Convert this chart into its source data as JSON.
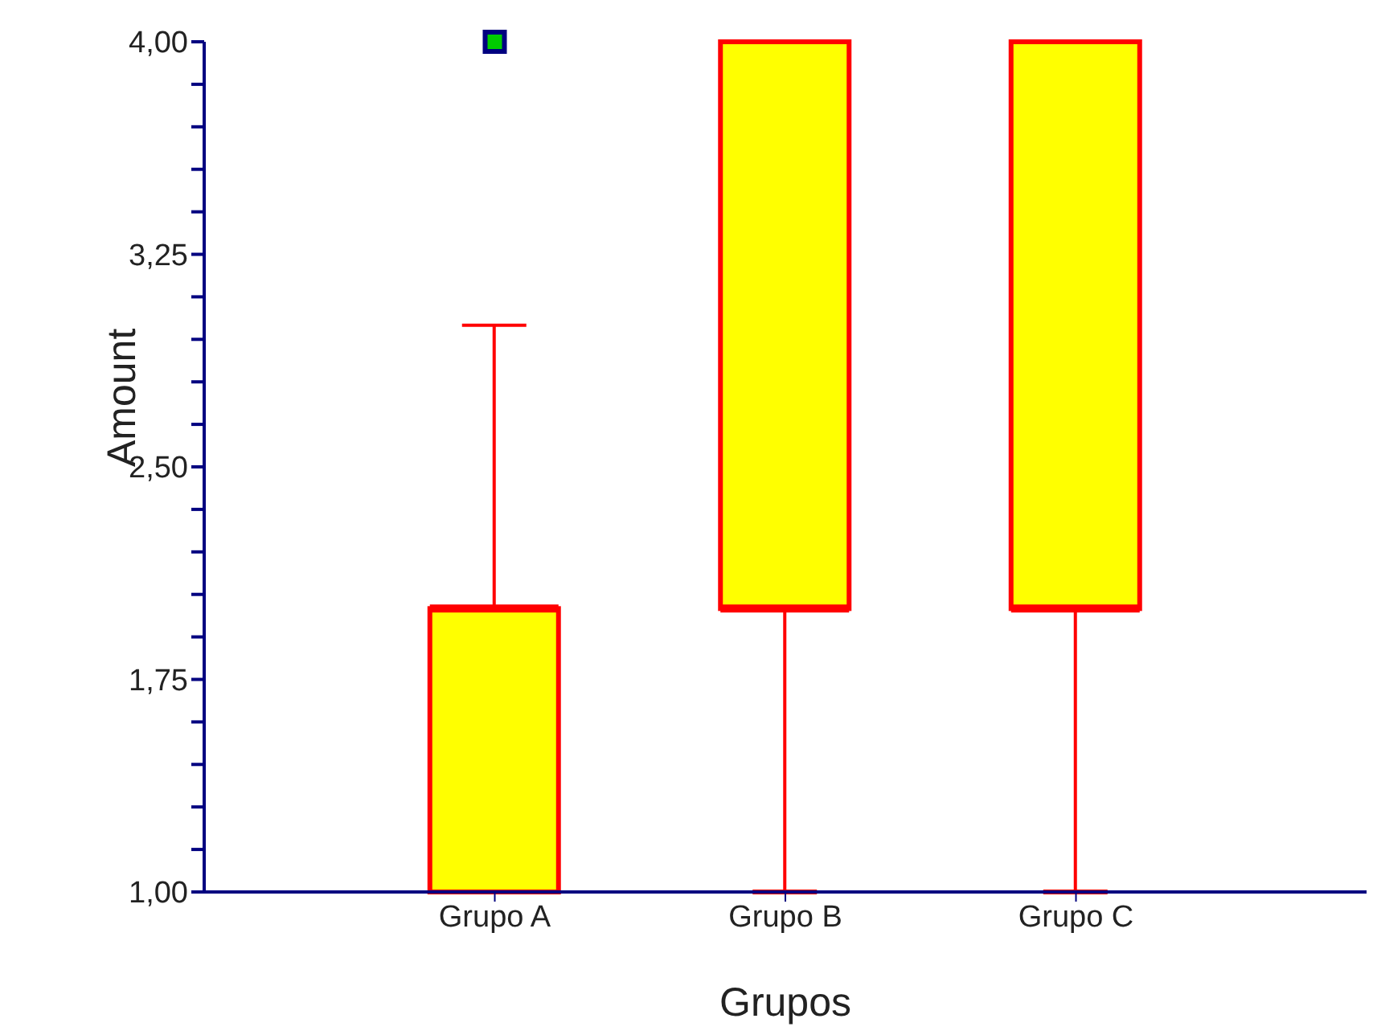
{
  "chart_data": {
    "type": "box",
    "xlabel": "Grupos",
    "ylabel": "Amount",
    "categories": [
      "Grupo A",
      "Grupo B",
      "Grupo C"
    ],
    "color": "#ffff00",
    "boxes": [
      {
        "low": 1,
        "q1": 1,
        "median": 2,
        "q3": 2,
        "high": 3,
        "outliers": [
          4
        ]
      },
      {
        "low": 1,
        "q1": 2,
        "median": 2,
        "q3": 4,
        "high": 4
      },
      {
        "low": 1,
        "q1": 2,
        "median": 2,
        "q3": 4,
        "high": 4
      }
    ],
    "ylim": [
      1,
      4
    ],
    "yticks": [
      {
        "value": 1,
        "label": "1,00"
      },
      {
        "value": 1.15,
        "label": null
      },
      {
        "value": 1.3,
        "label": null
      },
      {
        "value": 1.45,
        "label": null
      },
      {
        "value": 1.6,
        "label": null
      },
      {
        "value": 1.75,
        "label": "1,75"
      },
      {
        "value": 1.9,
        "label": null
      },
      {
        "value": 2.05,
        "label": null
      },
      {
        "value": 2.2,
        "label": null
      },
      {
        "value": 2.35,
        "label": null
      },
      {
        "value": 2.5,
        "label": "2,50"
      },
      {
        "value": 2.65,
        "label": null
      },
      {
        "value": 2.8,
        "label": null
      },
      {
        "value": 2.95,
        "label": null
      },
      {
        "value": 3.1,
        "label": null
      },
      {
        "value": 3.25,
        "label": "3,25"
      },
      {
        "value": 3.4,
        "label": null
      },
      {
        "value": 3.55,
        "label": null
      },
      {
        "value": 3.7,
        "label": null
      },
      {
        "value": 3.85,
        "label": null
      },
      {
        "value": 4,
        "label": "4,00"
      }
    ]
  }
}
